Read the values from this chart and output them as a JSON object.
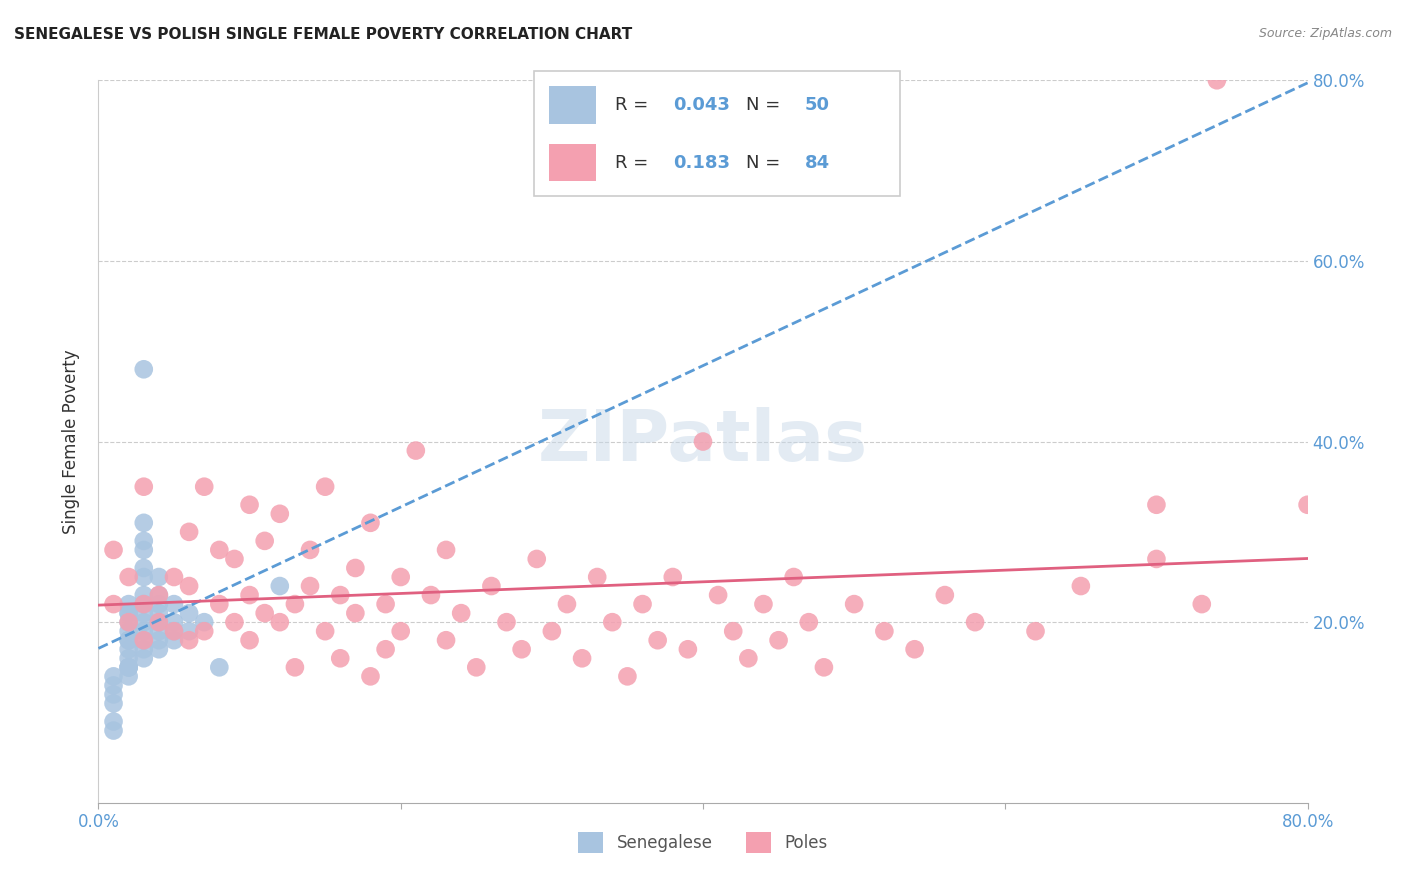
{
  "title": "SENEGALESE VS POLISH SINGLE FEMALE POVERTY CORRELATION CHART",
  "source": "Source: ZipAtlas.com",
  "ylabel": "Single Female Poverty",
  "xlim": [
    0.0,
    0.8
  ],
  "ylim": [
    0.0,
    0.8
  ],
  "senegalese_color": "#a8c4e0",
  "poles_color": "#f4a0b0",
  "trend_senegalese_color": "#5b9bd5",
  "trend_poles_color": "#e06080",
  "watermark": "ZIPatlas",
  "R_senegalese": 0.043,
  "N_senegalese": 50,
  "R_poles": 0.183,
  "N_poles": 84,
  "senegalese_x": [
    0.01,
    0.01,
    0.01,
    0.01,
    0.01,
    0.01,
    0.02,
    0.02,
    0.02,
    0.02,
    0.02,
    0.02,
    0.02,
    0.02,
    0.02,
    0.02,
    0.02,
    0.02,
    0.02,
    0.03,
    0.03,
    0.03,
    0.03,
    0.03,
    0.03,
    0.03,
    0.03,
    0.03,
    0.03,
    0.03,
    0.03,
    0.03,
    0.03,
    0.04,
    0.04,
    0.04,
    0.04,
    0.04,
    0.04,
    0.04,
    0.04,
    0.05,
    0.05,
    0.05,
    0.05,
    0.06,
    0.06,
    0.07,
    0.08,
    0.12
  ],
  "senegalese_y": [
    0.08,
    0.09,
    0.11,
    0.12,
    0.13,
    0.14,
    0.14,
    0.15,
    0.15,
    0.15,
    0.16,
    0.17,
    0.18,
    0.18,
    0.19,
    0.2,
    0.21,
    0.21,
    0.22,
    0.16,
    0.17,
    0.18,
    0.19,
    0.2,
    0.21,
    0.22,
    0.23,
    0.25,
    0.26,
    0.28,
    0.29,
    0.31,
    0.48,
    0.17,
    0.18,
    0.19,
    0.2,
    0.21,
    0.22,
    0.23,
    0.25,
    0.18,
    0.19,
    0.2,
    0.22,
    0.19,
    0.21,
    0.2,
    0.15,
    0.24
  ],
  "poles_x": [
    0.01,
    0.01,
    0.02,
    0.02,
    0.03,
    0.03,
    0.03,
    0.04,
    0.04,
    0.05,
    0.05,
    0.06,
    0.06,
    0.06,
    0.07,
    0.07,
    0.08,
    0.08,
    0.09,
    0.09,
    0.1,
    0.1,
    0.1,
    0.11,
    0.11,
    0.12,
    0.12,
    0.13,
    0.13,
    0.14,
    0.14,
    0.15,
    0.15,
    0.16,
    0.16,
    0.17,
    0.17,
    0.18,
    0.18,
    0.19,
    0.19,
    0.2,
    0.2,
    0.21,
    0.22,
    0.23,
    0.23,
    0.24,
    0.25,
    0.26,
    0.27,
    0.28,
    0.29,
    0.3,
    0.31,
    0.32,
    0.33,
    0.34,
    0.35,
    0.36,
    0.37,
    0.38,
    0.39,
    0.4,
    0.41,
    0.42,
    0.43,
    0.44,
    0.45,
    0.46,
    0.47,
    0.48,
    0.5,
    0.52,
    0.54,
    0.56,
    0.58,
    0.62,
    0.65,
    0.7,
    0.7,
    0.73,
    0.74,
    0.8
  ],
  "poles_y": [
    0.22,
    0.28,
    0.2,
    0.25,
    0.18,
    0.22,
    0.35,
    0.2,
    0.23,
    0.19,
    0.25,
    0.18,
    0.24,
    0.3,
    0.19,
    0.35,
    0.22,
    0.28,
    0.2,
    0.27,
    0.23,
    0.18,
    0.33,
    0.21,
    0.29,
    0.2,
    0.32,
    0.22,
    0.15,
    0.24,
    0.28,
    0.19,
    0.35,
    0.23,
    0.16,
    0.26,
    0.21,
    0.14,
    0.31,
    0.22,
    0.17,
    0.25,
    0.19,
    0.39,
    0.23,
    0.18,
    0.28,
    0.21,
    0.15,
    0.24,
    0.2,
    0.17,
    0.27,
    0.19,
    0.22,
    0.16,
    0.25,
    0.2,
    0.14,
    0.22,
    0.18,
    0.25,
    0.17,
    0.4,
    0.23,
    0.19,
    0.16,
    0.22,
    0.18,
    0.25,
    0.2,
    0.15,
    0.22,
    0.19,
    0.17,
    0.23,
    0.2,
    0.19,
    0.24,
    0.27,
    0.33,
    0.22,
    0.8,
    0.33
  ]
}
